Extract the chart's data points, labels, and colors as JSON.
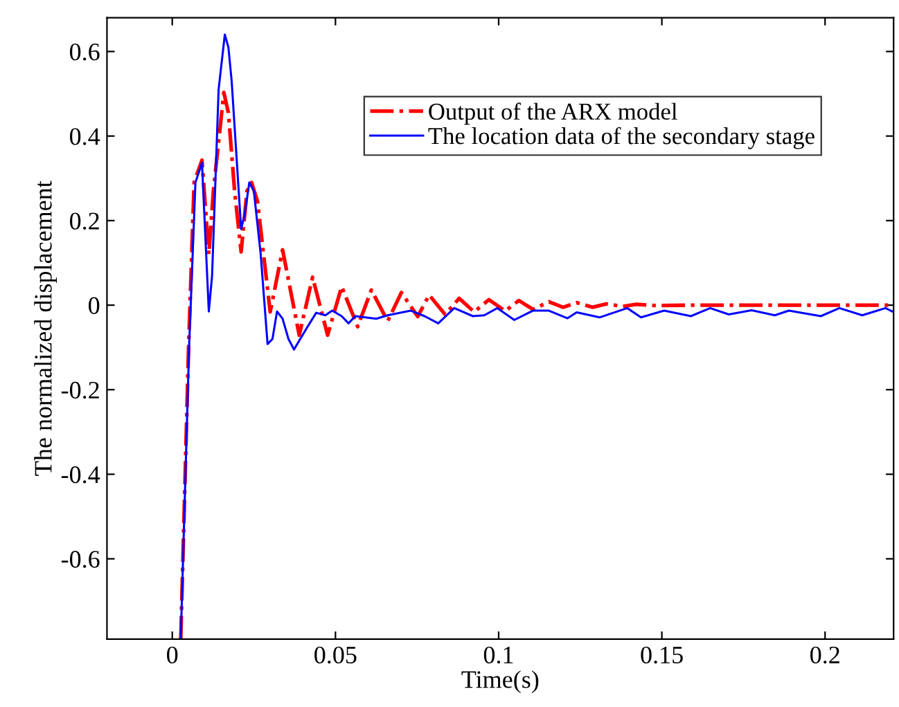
{
  "chart_data": {
    "type": "line",
    "xlabel": "Time(s)",
    "ylabel": "The normalized displacement",
    "xlim": [
      -0.02,
      0.221
    ],
    "ylim": [
      -0.79,
      0.68
    ],
    "xticks": [
      0,
      0.05,
      0.1,
      0.15,
      0.2
    ],
    "yticks": [
      -0.6,
      -0.4,
      -0.2,
      0,
      0.2,
      0.4,
      0.6
    ],
    "grid": false,
    "legend": "top right",
    "marker": "none",
    "series": [
      {
        "name": "Output of the ARX model",
        "color": "#ff0000",
        "line_style": "dashdot",
        "x": [
          0.0026,
          0.005,
          0.0067,
          0.0091,
          0.0112,
          0.0126,
          0.0158,
          0.0172,
          0.0191,
          0.0211,
          0.0229,
          0.0243,
          0.0261,
          0.03,
          0.0338,
          0.0389,
          0.043,
          0.0476,
          0.0519,
          0.0568,
          0.061,
          0.066,
          0.0702,
          0.0752,
          0.0787,
          0.0836,
          0.0879,
          0.0925,
          0.097,
          0.102,
          0.1062,
          0.1105,
          0.1154,
          0.1197,
          0.1239,
          0.1288,
          0.133,
          0.138,
          0.1422,
          0.1479,
          0.16,
          0.18,
          0.2,
          0.2206
        ],
        "values": [
          -0.79,
          -0.1,
          0.29,
          0.343,
          0.12,
          0.27,
          0.503,
          0.455,
          0.27,
          0.126,
          0.27,
          0.29,
          0.246,
          -0.016,
          0.131,
          -0.071,
          0.066,
          -0.071,
          0.044,
          -0.051,
          0.036,
          -0.038,
          0.03,
          -0.027,
          0.024,
          -0.022,
          0.016,
          -0.016,
          0.013,
          -0.014,
          0.011,
          -0.01,
          0.008,
          -0.005,
          0.006,
          -0.005,
          0.003,
          -0.003,
          0.002,
          -0.001,
          0,
          0,
          0,
          0
        ]
      },
      {
        "name": "The location data of the secondary stage",
        "color": "#0000ff",
        "line_style": "solid",
        "x": [
          0.0026,
          0.0052,
          0.0071,
          0.0091,
          0.0112,
          0.0122,
          0.0142,
          0.0161,
          0.0172,
          0.0182,
          0.0211,
          0.0222,
          0.0236,
          0.025,
          0.0271,
          0.0292,
          0.0307,
          0.0321,
          0.0338,
          0.0356,
          0.0373,
          0.0392,
          0.0413,
          0.0441,
          0.0469,
          0.049,
          0.0519,
          0.054,
          0.0561,
          0.0625,
          0.066,
          0.0731,
          0.0773,
          0.0815,
          0.0864,
          0.0921,
          0.0956,
          0.0996,
          0.1048,
          0.1105,
          0.1154,
          0.1211,
          0.1239,
          0.1309,
          0.1394,
          0.1436,
          0.1507,
          0.1589,
          0.1648,
          0.1705,
          0.1775,
          0.1846,
          0.1889,
          0.1987,
          0.2044,
          0.2114,
          0.2185,
          0.2206
        ],
        "values": [
          -0.79,
          -0.09,
          0.29,
          0.337,
          -0.015,
          0.07,
          0.51,
          0.64,
          0.61,
          0.53,
          0.18,
          0.215,
          0.29,
          0.27,
          0.12,
          -0.092,
          -0.08,
          -0.015,
          -0.032,
          -0.08,
          -0.105,
          -0.08,
          -0.053,
          -0.018,
          -0.024,
          -0.013,
          -0.026,
          -0.043,
          -0.026,
          -0.032,
          -0.024,
          -0.013,
          -0.026,
          -0.043,
          -0.007,
          -0.026,
          -0.024,
          -0.007,
          -0.035,
          -0.013,
          -0.013,
          -0.031,
          -0.017,
          -0.029,
          -0.007,
          -0.029,
          -0.013,
          -0.026,
          -0.007,
          -0.022,
          -0.012,
          -0.024,
          -0.013,
          -0.026,
          -0.007,
          -0.024,
          -0.007,
          -0.015
        ]
      }
    ]
  }
}
